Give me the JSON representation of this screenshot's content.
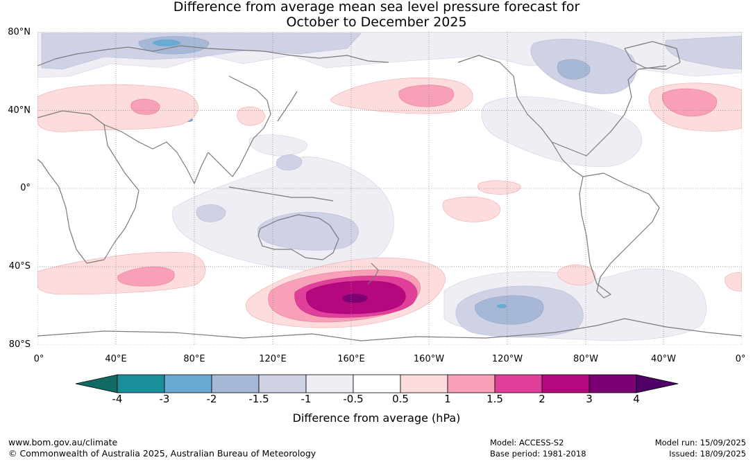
{
  "title_line1": "Difference from average mean sea level pressure forecast for",
  "title_line2": "October to December 2025",
  "lat_labels": [
    "80°N",
    "40°N",
    "0°",
    "40°S",
    "80°S"
  ],
  "lon_labels": [
    "0°",
    "40°E",
    "80°E",
    "120°E",
    "160°E",
    "160°W",
    "120°W",
    "80°W",
    "40°W",
    "0°"
  ],
  "colorbar": {
    "title": "Difference from average (hPa)",
    "ticks": [
      "-4",
      "-3",
      "-2",
      "-1.5",
      "-1",
      "-0.5",
      "0.5",
      "1",
      "1.5",
      "2",
      "3",
      "4"
    ],
    "colors": [
      "#0f6b64",
      "#1b8f99",
      "#6aa9d2",
      "#a7b8d6",
      "#cfd1e5",
      "#efeef4",
      "#ffffff",
      "#fcdcdc",
      "#f7a0b8",
      "#e0409a",
      "#b5077e",
      "#7c0074",
      "#4e0068"
    ]
  },
  "footer": {
    "url": "www.bom.gov.au/climate",
    "copyright": "© Commonwealth of Australia 2025, Australian Bureau of Meteorology",
    "model": "Model: ACCESS-S2",
    "base_period": "Base period: 1981-2018",
    "model_run": "Model run: 15/09/2025",
    "issued": "Issued: 18/09/2025"
  }
}
